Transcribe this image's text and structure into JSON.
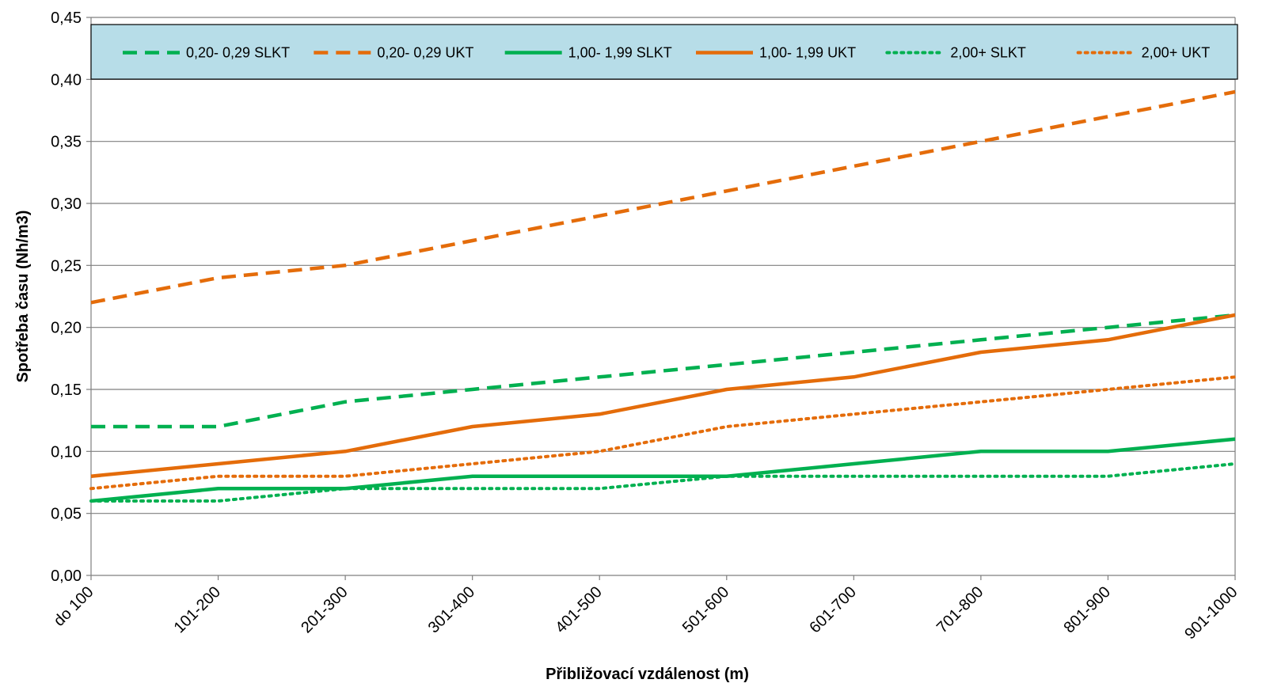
{
  "chart_data": {
    "type": "line",
    "xlabel": "Přibližovací vzdálenost (m)",
    "ylabel": "Spotřeba času (Nh/m3)",
    "ylim": [
      0,
      0.45
    ],
    "y_ticks": [
      "0,00",
      "0,05",
      "0,10",
      "0,15",
      "0,20",
      "0,25",
      "0,30",
      "0,35",
      "0,40",
      "0,45"
    ],
    "y_tick_values": [
      0,
      0.05,
      0.1,
      0.15,
      0.2,
      0.25,
      0.3,
      0.35,
      0.4,
      0.45
    ],
    "grid": true,
    "legend_position": "top",
    "legend_background": "#b7dde8",
    "categories": [
      "do 100",
      "101-200",
      "201-300",
      "301-400",
      "401-500",
      "501-600",
      "601-700",
      "701-800",
      "801-900",
      "901-1000"
    ],
    "series": [
      {
        "name": "0,20- 0,29 SLKT",
        "color": "#00b050",
        "dash": "dashed",
        "values": [
          0.12,
          0.12,
          0.14,
          0.15,
          0.16,
          0.17,
          0.18,
          0.19,
          0.2,
          0.21
        ]
      },
      {
        "name": "0,20- 0,29 UKT",
        "color": "#e46c0a",
        "dash": "dashed",
        "values": [
          0.22,
          0.24,
          0.25,
          0.27,
          0.29,
          0.31,
          0.33,
          0.35,
          0.37,
          0.39
        ]
      },
      {
        "name": "1,00- 1,99 SLKT",
        "color": "#00b050",
        "dash": "solid",
        "values": [
          0.06,
          0.07,
          0.07,
          0.08,
          0.08,
          0.08,
          0.09,
          0.1,
          0.1,
          0.11
        ]
      },
      {
        "name": "1,00- 1,99 UKT",
        "color": "#e46c0a",
        "dash": "solid",
        "values": [
          0.08,
          0.09,
          0.1,
          0.12,
          0.13,
          0.15,
          0.16,
          0.18,
          0.19,
          0.21
        ]
      },
      {
        "name": "2,00+ SLKT",
        "color": "#00b050",
        "dash": "dotted",
        "values": [
          0.06,
          0.06,
          0.07,
          0.07,
          0.07,
          0.08,
          0.08,
          0.08,
          0.08,
          0.09
        ]
      },
      {
        "name": "2,00+ UKT",
        "color": "#e46c0a",
        "dash": "dotted",
        "values": [
          0.07,
          0.08,
          0.08,
          0.09,
          0.1,
          0.12,
          0.13,
          0.14,
          0.15,
          0.16
        ]
      }
    ]
  }
}
